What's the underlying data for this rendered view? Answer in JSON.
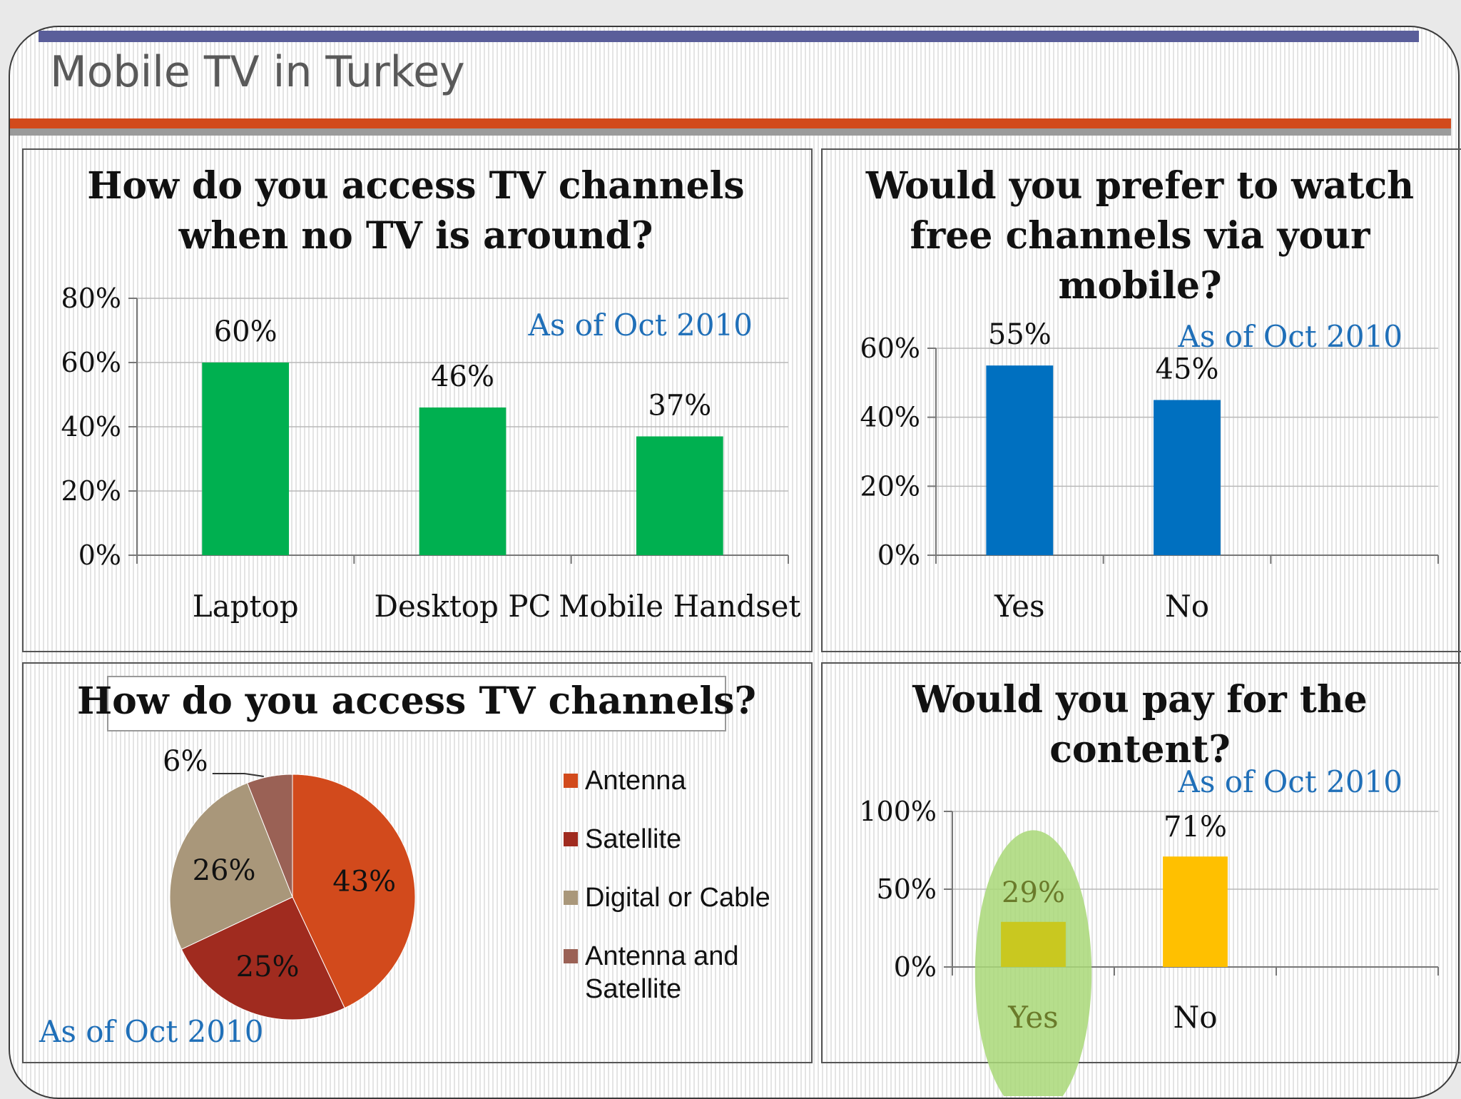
{
  "slide": {
    "title": "Mobile TV in Turkey"
  },
  "colors": {
    "green": "#00b050",
    "blue": "#0070c0",
    "yellow": "#ffc000",
    "olive": "#c9c820",
    "highlight": "#a9d878",
    "antenna": "#d24a1c",
    "satellite": "#a02b1f",
    "digital_cable": "#a9977a",
    "antenna_satellite": "#9a6155",
    "date_note": "#1f6fb8"
  },
  "chart_data": [
    {
      "id": "access-no-tv",
      "type": "bar",
      "title": "How do you access TV channels when no TV is around?",
      "title_lines": [
        "How do you access TV channels",
        "when no TV is around?"
      ],
      "note": "As of Oct 2010",
      "categories": [
        "Laptop",
        "Desktop PC",
        "Mobile Handset"
      ],
      "values": [
        60,
        46,
        37
      ],
      "data_labels": [
        "60%",
        "46%",
        "37%"
      ],
      "ylim": [
        0,
        80
      ],
      "yticks": [
        "0%",
        "20%",
        "40%",
        "60%",
        "80%"
      ],
      "grid": true
    },
    {
      "id": "prefer-free-mobile",
      "type": "bar",
      "title": "Would you prefer to watch free channels via your mobile?",
      "title_lines": [
        "Would you prefer to watch",
        "free channels via your",
        "mobile?"
      ],
      "note": "As of Oct 2010",
      "categories": [
        "Yes",
        "No"
      ],
      "values": [
        55,
        45
      ],
      "data_labels": [
        "55%",
        "45%"
      ],
      "ylim": [
        0,
        60
      ],
      "yticks": [
        "0%",
        "20%",
        "40%",
        "60%"
      ],
      "grid": true
    },
    {
      "id": "access-tv",
      "type": "pie",
      "title": "How do you access TV channels?",
      "note": "As of Oct 2010",
      "legend_position": "right",
      "slices": [
        {
          "label": "Antenna",
          "value": 43,
          "data_label": "43%",
          "color": "#d24a1c"
        },
        {
          "label": "Satellite",
          "value": 25,
          "data_label": "25%",
          "color": "#a02b1f"
        },
        {
          "label": "Digital or Cable",
          "value": 26,
          "data_label": "26%",
          "color": "#a9977a"
        },
        {
          "label": "Antenna and Satellite",
          "value": 6,
          "data_label": "6%",
          "color": "#9a6155"
        }
      ],
      "legend_lines": [
        [
          "Antenna"
        ],
        [
          "Satellite"
        ],
        [
          "Digital or Cable"
        ],
        [
          "Antenna and",
          "Satellite"
        ]
      ]
    },
    {
      "id": "pay-content",
      "type": "bar",
      "title": "Would you pay for the content?",
      "title_lines": [
        "Would you pay for the",
        "content?"
      ],
      "note": "As of Oct 2010",
      "categories": [
        "Yes",
        "No"
      ],
      "values": [
        29,
        71
      ],
      "data_labels": [
        "29%",
        "71%"
      ],
      "ylim": [
        0,
        100
      ],
      "yticks": [
        "0%",
        "50%",
        "100%"
      ],
      "grid": true,
      "highlight_category": "Yes"
    }
  ]
}
